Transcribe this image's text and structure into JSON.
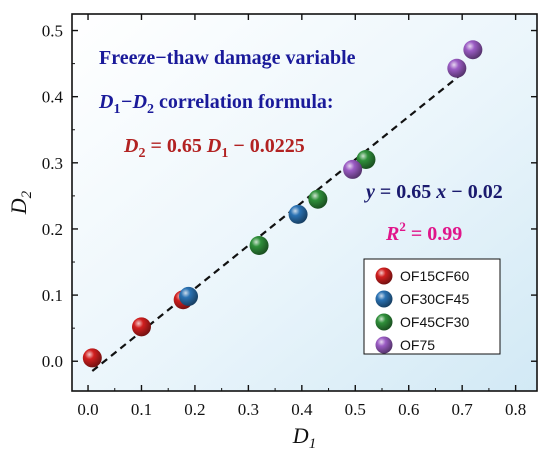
{
  "chart_data": {
    "type": "scatter",
    "xlabel": "D",
    "xlabel_sub": "1",
    "ylabel": "D",
    "ylabel_sub": "2",
    "xlim": [
      -0.03,
      0.84
    ],
    "ylim": [
      -0.045,
      0.525
    ],
    "x_ticks": [
      "0.0",
      "0.1",
      "0.2",
      "0.3",
      "0.4",
      "0.5",
      "0.6",
      "0.7",
      "0.8"
    ],
    "y_ticks": [
      "0.0",
      "0.1",
      "0.2",
      "0.3",
      "0.4",
      "0.5"
    ],
    "series": [
      {
        "name": "OF15CF60",
        "color": "#d11f1f",
        "points": [
          [
            0.008,
            0.005
          ],
          [
            0.1,
            0.052
          ],
          [
            0.178,
            0.093
          ]
        ]
      },
      {
        "name": "OF30CF45",
        "color": "#2a72b3",
        "points": [
          [
            0.188,
            0.098
          ],
          [
            0.393,
            0.222
          ]
        ]
      },
      {
        "name": "OF45CF30",
        "color": "#2f8f3a",
        "points": [
          [
            0.32,
            0.175
          ],
          [
            0.43,
            0.245
          ],
          [
            0.52,
            0.305
          ]
        ]
      },
      {
        "name": "OF75",
        "color": "#9b5cc4",
        "points": [
          [
            0.495,
            0.29
          ],
          [
            0.69,
            0.443
          ],
          [
            0.72,
            0.471
          ]
        ]
      }
    ],
    "fit_line": {
      "style": "dashed",
      "color": "#111111",
      "x_range": [
        0.008,
        0.7
      ],
      "slope": 0.65,
      "intercept": -0.02
    },
    "annotations": {
      "title_line1": "Freeze−thaw damage variable",
      "title_line2_a": "D",
      "title_line2_a_sub": "1",
      "title_line2_b": "−D",
      "title_line2_b_sub": "2",
      "title_line2_c": " correlation formula:",
      "formula_a": "D",
      "formula_a_sub": "2",
      "formula_b": " = 0.65 ",
      "formula_c": "D",
      "formula_c_sub": "1",
      "formula_d": " − 0.0225",
      "fit_eq_a": "y",
      "fit_eq_b": " = 0.65 ",
      "fit_eq_c": "x",
      "fit_eq_d": " − 0.02",
      "r2_a": "R",
      "r2_sup": "2",
      "r2_b": " = 0.99"
    },
    "colors": {
      "title": "#1a1a9a",
      "formula": "#b22222",
      "fit_eq": "#1a1a6e",
      "r2": "#e0158a"
    },
    "legend": {
      "position": "bottom-right"
    }
  }
}
